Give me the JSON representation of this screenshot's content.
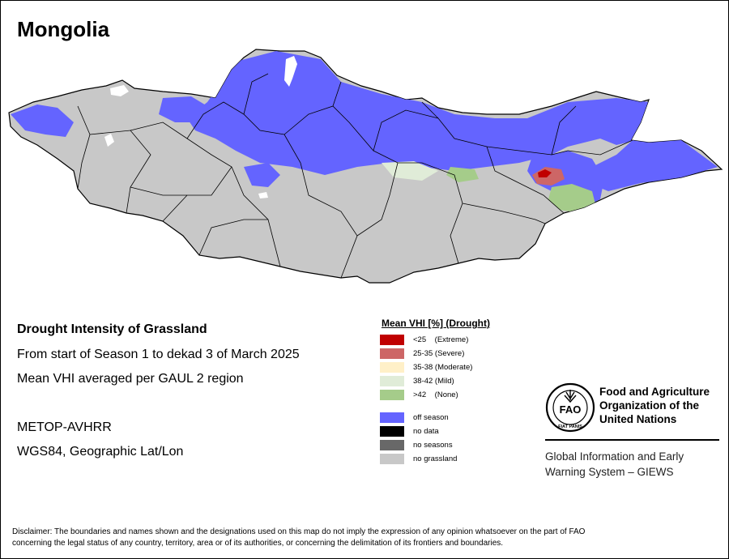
{
  "map": {
    "title": "Mongolia",
    "country_fill": "#c8c8c8",
    "boundary_color": "#000000"
  },
  "info": {
    "title": "Drought Intensity of Grassland",
    "period": "From start of Season 1 to dekad 3 of March 2025",
    "method": "Mean VHI averaged per GAUL 2 region",
    "sensor": "METOP-AVHRR",
    "projection": "WGS84, Geographic Lat/Lon"
  },
  "legend": {
    "title": "Mean VHI [%] (Drought)",
    "items": [
      {
        "label": "<25    (Extreme)",
        "color": "#c00000"
      },
      {
        "label": "25-35 (Severe)",
        "color": "#cd6666"
      },
      {
        "label": "35-38 (Moderate)",
        "color": "#fff0c8"
      },
      {
        "label": "38-42 (Mild)",
        "color": "#e0ecd8"
      },
      {
        "label": ">42    (None)",
        "color": "#a5cc8a"
      },
      {
        "label": "off season",
        "color": "#6464ff"
      },
      {
        "label": "no data",
        "color": "#000000"
      },
      {
        "label": "no seasons",
        "color": "#686868"
      },
      {
        "label": "no grassland",
        "color": "#c8c8c8"
      }
    ]
  },
  "fao": {
    "logo_text": "FAO",
    "logo_motto": "FIAT PANIS",
    "name_line1": "Food and Agriculture",
    "name_line2": "Organization of the",
    "name_line3": "United Nations",
    "giews_line1": "Global Information and Early",
    "giews_line2": "Warning System – GIEWS"
  },
  "disclaimer": {
    "line1": "Disclaimer: The boundaries and names shown and the designations used on this map do not imply the expression of any opinion whatsoever on the part of FAO",
    "line2": "concerning the legal status of any country, territory, area or of its authorities, or concerning the delimitation of its frontiers and boundaries."
  }
}
